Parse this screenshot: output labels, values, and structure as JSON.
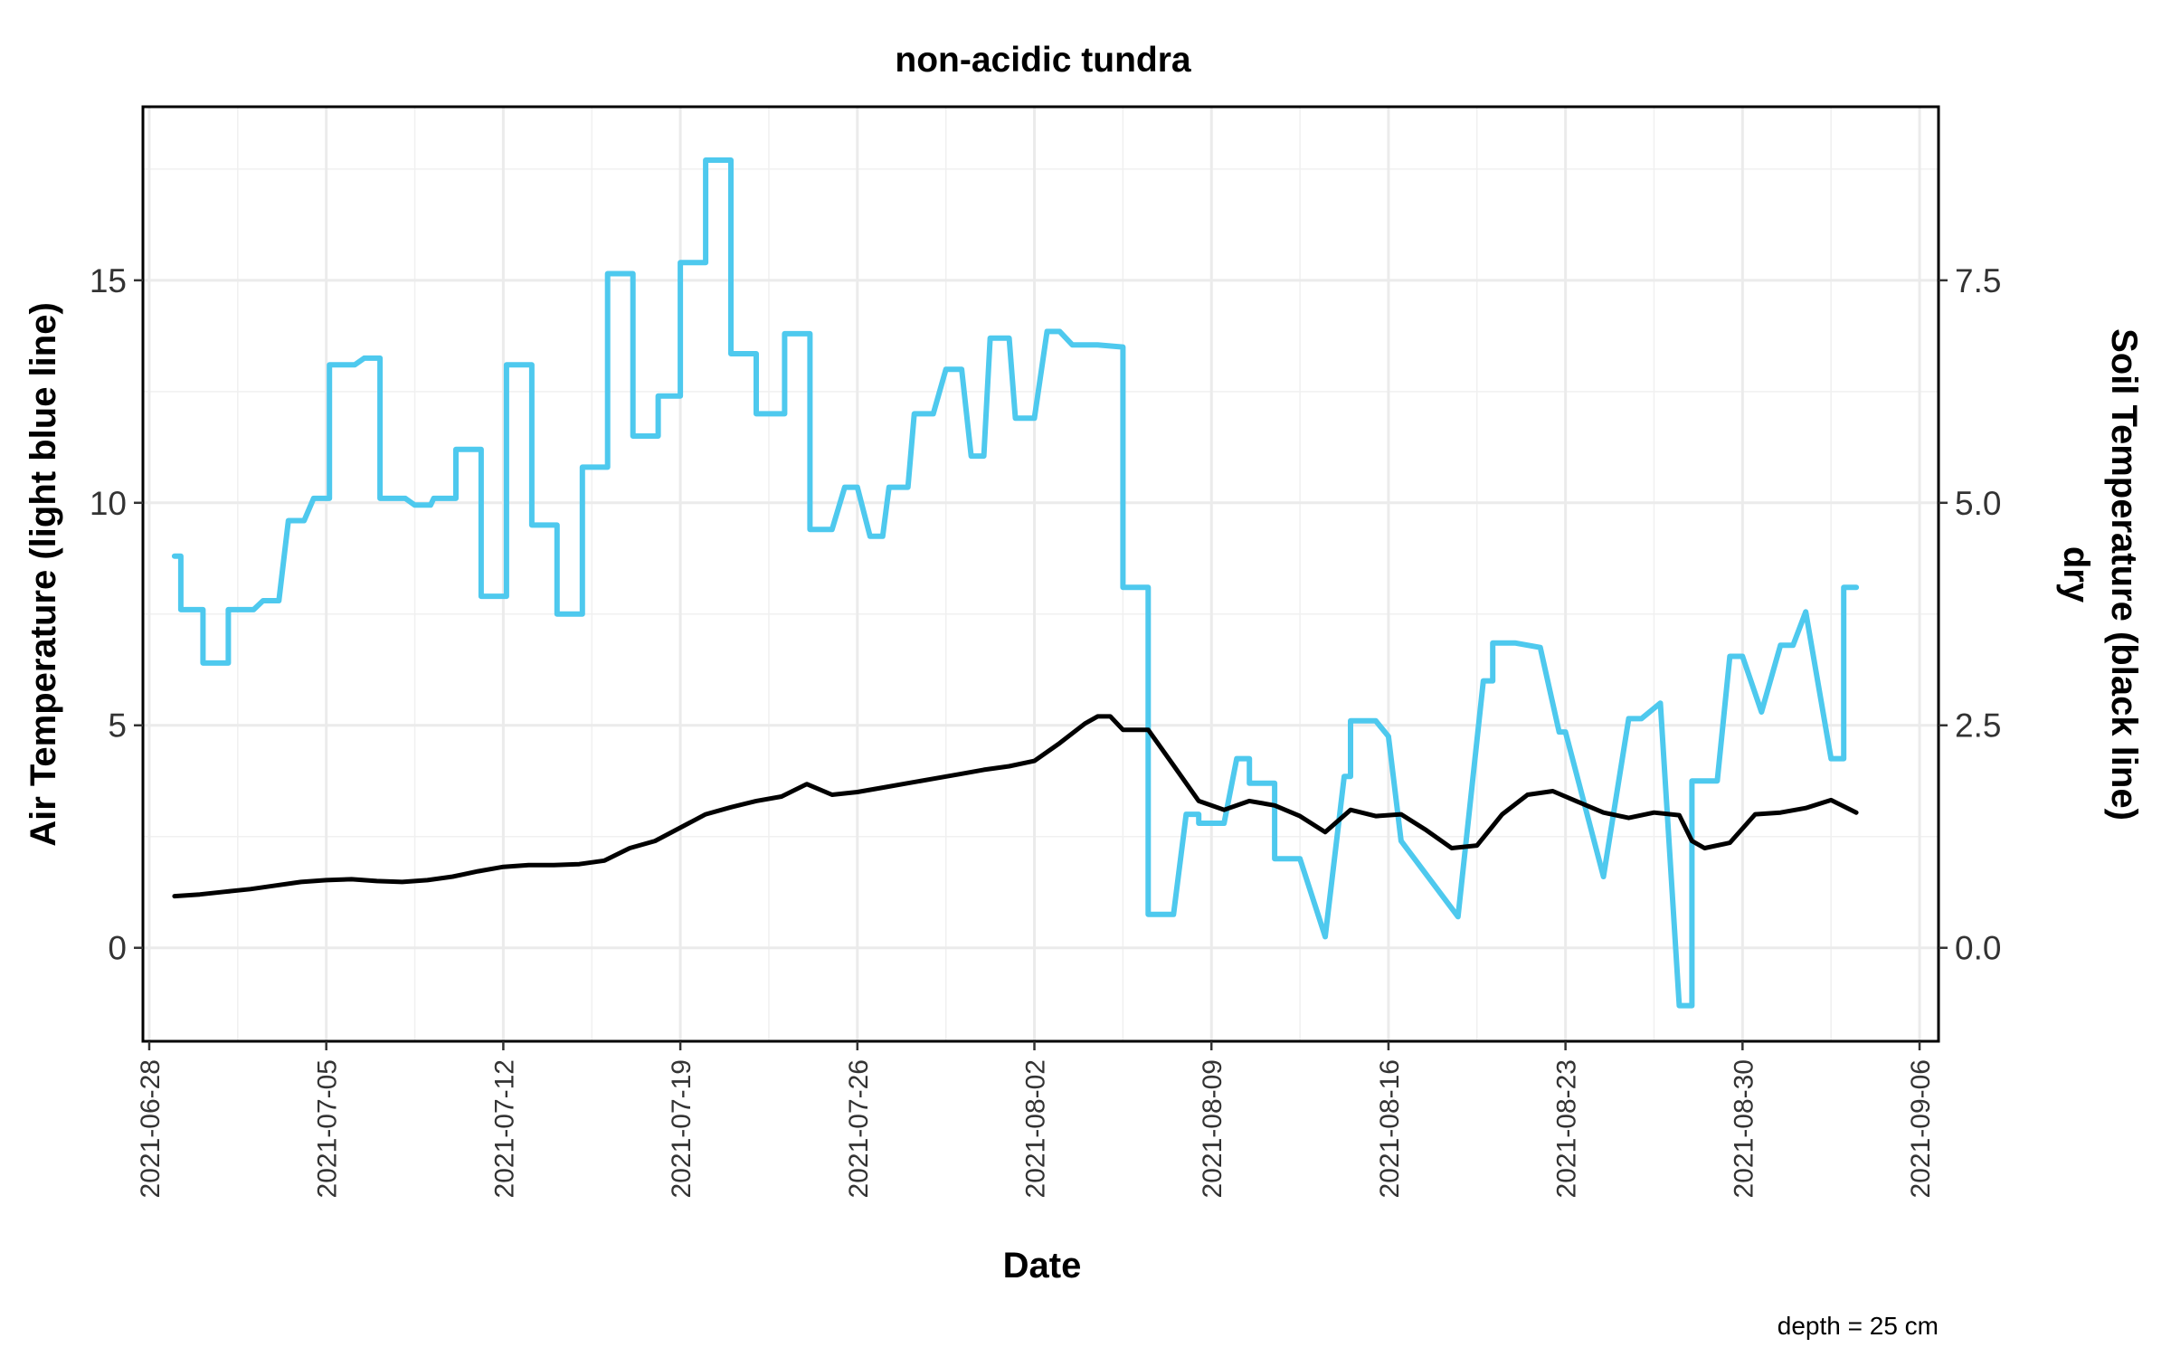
{
  "chart_data": {
    "type": "line",
    "title": "non-acidic tundra",
    "xlabel": "Date",
    "ylabel_left": "Air Temperature (light blue line)",
    "ylabel_right_line1": "Soil Temperature (black line)",
    "ylabel_right_line2": "dry",
    "caption": "depth = 25 cm",
    "x_ticks": [
      "2021-06-28",
      "2021-07-05",
      "2021-07-12",
      "2021-07-19",
      "2021-07-26",
      "2021-08-02",
      "2021-08-09",
      "2021-08-16",
      "2021-08-23",
      "2021-08-30",
      "2021-09-06"
    ],
    "y_left_ticks": [
      "0",
      "5",
      "10",
      "15"
    ],
    "y_right_ticks": [
      "0.0",
      "2.5",
      "5.0",
      "7.5"
    ],
    "xlim": [
      "2021-06-27T18:00",
      "2021-09-06T18:00"
    ],
    "ylim_left": [
      -2.1,
      18.9
    ],
    "ylim_right": [
      -1.05,
      9.45
    ],
    "grid": true,
    "colors": {
      "air": "#4ec9ee",
      "soil": "#000000"
    },
    "series": [
      {
        "key": "air",
        "axis": "left",
        "points": [
          [
            "2021-06-29T00:00",
            8.8
          ],
          [
            "2021-06-29T06:00",
            8.8
          ],
          [
            "2021-06-29T06:00",
            7.6
          ],
          [
            "2021-06-30T03:00",
            7.6
          ],
          [
            "2021-06-30T03:00",
            6.4
          ],
          [
            "2021-07-01T03:00",
            6.4
          ],
          [
            "2021-07-01T03:00",
            7.6
          ],
          [
            "2021-07-02T03:00",
            7.6
          ],
          [
            "2021-07-02T12:00",
            7.8
          ],
          [
            "2021-07-03T03:00",
            7.8
          ],
          [
            "2021-07-03T12:00",
            9.6
          ],
          [
            "2021-07-04T03:00",
            9.6
          ],
          [
            "2021-07-04T12:00",
            10.1
          ],
          [
            "2021-07-05T03:00",
            10.1
          ],
          [
            "2021-07-05T03:00",
            13.1
          ],
          [
            "2021-07-06T03:00",
            13.1
          ],
          [
            "2021-07-06T12:00",
            13.25
          ],
          [
            "2021-07-07T03:00",
            13.25
          ],
          [
            "2021-07-07T03:00",
            10.1
          ],
          [
            "2021-07-08T03:00",
            10.1
          ],
          [
            "2021-07-08T12:00",
            9.95
          ],
          [
            "2021-07-09T03:00",
            9.95
          ],
          [
            "2021-07-09T06:00",
            10.1
          ],
          [
            "2021-07-10T03:00",
            10.1
          ],
          [
            "2021-07-10T03:00",
            11.2
          ],
          [
            "2021-07-11T03:00",
            11.2
          ],
          [
            "2021-07-11T03:00",
            7.9
          ],
          [
            "2021-07-12T03:00",
            7.9
          ],
          [
            "2021-07-12T03:00",
            13.1
          ],
          [
            "2021-07-13T03:00",
            13.1
          ],
          [
            "2021-07-13T03:00",
            9.5
          ],
          [
            "2021-07-14T03:00",
            9.5
          ],
          [
            "2021-07-14T03:00",
            7.5
          ],
          [
            "2021-07-15T03:00",
            7.5
          ],
          [
            "2021-07-15T03:00",
            10.8
          ],
          [
            "2021-07-16T03:00",
            10.8
          ],
          [
            "2021-07-16T03:00",
            15.15
          ],
          [
            "2021-07-17T03:00",
            15.15
          ],
          [
            "2021-07-17T03:00",
            11.5
          ],
          [
            "2021-07-18T03:00",
            11.5
          ],
          [
            "2021-07-18T03:00",
            12.4
          ],
          [
            "2021-07-19T00:00",
            12.4
          ],
          [
            "2021-07-19T00:00",
            15.4
          ],
          [
            "2021-07-20T00:00",
            15.4
          ],
          [
            "2021-07-20T00:00",
            17.7
          ],
          [
            "2021-07-21T00:00",
            17.7
          ],
          [
            "2021-07-21T00:00",
            13.35
          ],
          [
            "2021-07-22T00:00",
            13.35
          ],
          [
            "2021-07-22T00:00",
            12.0
          ],
          [
            "2021-07-23T03:00",
            12.0
          ],
          [
            "2021-07-23T03:00",
            13.8
          ],
          [
            "2021-07-24T03:00",
            13.8
          ],
          [
            "2021-07-24T03:00",
            9.4
          ],
          [
            "2021-07-25T00:00",
            9.4
          ],
          [
            "2021-07-25T12:00",
            10.35
          ],
          [
            "2021-07-26T00:00",
            10.35
          ],
          [
            "2021-07-26T12:00",
            9.25
          ],
          [
            "2021-07-27T00:00",
            9.25
          ],
          [
            "2021-07-27T06:00",
            10.35
          ],
          [
            "2021-07-28T00:00",
            10.35
          ],
          [
            "2021-07-28T06:00",
            12.0
          ],
          [
            "2021-07-29T00:00",
            12.0
          ],
          [
            "2021-07-29T12:00",
            13.0
          ],
          [
            "2021-07-30T03:00",
            13.0
          ],
          [
            "2021-07-30T12:00",
            11.05
          ],
          [
            "2021-07-31T00:00",
            11.05
          ],
          [
            "2021-07-31T06:00",
            13.7
          ],
          [
            "2021-08-01T00:00",
            13.7
          ],
          [
            "2021-08-01T06:00",
            11.9
          ],
          [
            "2021-08-02T00:00",
            11.9
          ],
          [
            "2021-08-02T12:00",
            13.85
          ],
          [
            "2021-08-03T00:00",
            13.85
          ],
          [
            "2021-08-03T12:00",
            13.55
          ],
          [
            "2021-08-04T12:00",
            13.55
          ],
          [
            "2021-08-05T12:00",
            13.5
          ],
          [
            "2021-08-05T12:00",
            8.1
          ],
          [
            "2021-08-06T12:00",
            8.1
          ],
          [
            "2021-08-06T12:00",
            0.75
          ],
          [
            "2021-08-07T12:00",
            0.75
          ],
          [
            "2021-08-08T00:00",
            3.0
          ],
          [
            "2021-08-08T12:00",
            3.0
          ],
          [
            "2021-08-08T12:00",
            2.8
          ],
          [
            "2021-08-09T12:00",
            2.8
          ],
          [
            "2021-08-10T00:00",
            4.25
          ],
          [
            "2021-08-10T12:00",
            4.25
          ],
          [
            "2021-08-10T12:00",
            3.7
          ],
          [
            "2021-08-11T12:00",
            3.7
          ],
          [
            "2021-08-11T12:00",
            2.0
          ],
          [
            "2021-08-12T12:00",
            2.0
          ],
          [
            "2021-08-13T12:00",
            0.25
          ],
          [
            "2021-08-14T06:00",
            3.85
          ],
          [
            "2021-08-14T12:00",
            3.85
          ],
          [
            "2021-08-14T12:00",
            5.1
          ],
          [
            "2021-08-15T12:00",
            5.1
          ],
          [
            "2021-08-16T00:00",
            4.75
          ],
          [
            "2021-08-16T12:00",
            2.4
          ],
          [
            "2021-08-18T18:00",
            0.7
          ],
          [
            "2021-08-19T18:00",
            6.0
          ],
          [
            "2021-08-20T03:00",
            6.0
          ],
          [
            "2021-08-20T03:00",
            6.85
          ],
          [
            "2021-08-21T00:00",
            6.85
          ],
          [
            "2021-08-22T00:00",
            6.75
          ],
          [
            "2021-08-22T18:00",
            4.85
          ],
          [
            "2021-08-23T00:00",
            4.85
          ],
          [
            "2021-08-24T12:00",
            1.6
          ],
          [
            "2021-08-25T12:00",
            5.15
          ],
          [
            "2021-08-26T00:00",
            5.15
          ],
          [
            "2021-08-26T18:00",
            5.5
          ],
          [
            "2021-08-27T12:00",
            -1.3
          ],
          [
            "2021-08-28T00:00",
            -1.3
          ],
          [
            "2021-08-28T00:00",
            3.75
          ],
          [
            "2021-08-29T00:00",
            3.75
          ],
          [
            "2021-08-29T12:00",
            6.55
          ],
          [
            "2021-08-30T00:00",
            6.55
          ],
          [
            "2021-08-30T18:00",
            5.3
          ],
          [
            "2021-08-31T12:00",
            6.8
          ],
          [
            "2021-09-01T00:00",
            6.8
          ],
          [
            "2021-09-01T12:00",
            7.55
          ],
          [
            "2021-09-02T12:00",
            4.25
          ],
          [
            "2021-09-03T00:00",
            4.25
          ],
          [
            "2021-09-03T00:00",
            8.1
          ],
          [
            "2021-09-03T12:00",
            8.1
          ]
        ]
      },
      {
        "key": "soil",
        "axis": "right",
        "points": [
          [
            "2021-06-29T00:00",
            0.58
          ],
          [
            "2021-06-30T00:00",
            0.6
          ],
          [
            "2021-07-01T00:00",
            0.63
          ],
          [
            "2021-07-02T00:00",
            0.66
          ],
          [
            "2021-07-03T00:00",
            0.7
          ],
          [
            "2021-07-04T00:00",
            0.74
          ],
          [
            "2021-07-05T00:00",
            0.76
          ],
          [
            "2021-07-06T00:00",
            0.77
          ],
          [
            "2021-07-07T00:00",
            0.75
          ],
          [
            "2021-07-08T00:00",
            0.74
          ],
          [
            "2021-07-09T00:00",
            0.76
          ],
          [
            "2021-07-10T00:00",
            0.8
          ],
          [
            "2021-07-11T00:00",
            0.86
          ],
          [
            "2021-07-12T00:00",
            0.91
          ],
          [
            "2021-07-13T00:00",
            0.93
          ],
          [
            "2021-07-14T00:00",
            0.93
          ],
          [
            "2021-07-15T00:00",
            0.94
          ],
          [
            "2021-07-16T00:00",
            0.98
          ],
          [
            "2021-07-17T00:00",
            1.12
          ],
          [
            "2021-07-18T00:00",
            1.2
          ],
          [
            "2021-07-19T00:00",
            1.35
          ],
          [
            "2021-07-20T00:00",
            1.5
          ],
          [
            "2021-07-21T00:00",
            1.58
          ],
          [
            "2021-07-22T00:00",
            1.65
          ],
          [
            "2021-07-23T00:00",
            1.7
          ],
          [
            "2021-07-24T00:00",
            1.84
          ],
          [
            "2021-07-25T00:00",
            1.72
          ],
          [
            "2021-07-26T00:00",
            1.75
          ],
          [
            "2021-07-27T00:00",
            1.8
          ],
          [
            "2021-07-28T00:00",
            1.85
          ],
          [
            "2021-07-29T00:00",
            1.9
          ],
          [
            "2021-07-30T00:00",
            1.95
          ],
          [
            "2021-07-31T00:00",
            2.0
          ],
          [
            "2021-08-01T00:00",
            2.04
          ],
          [
            "2021-08-02T00:00",
            2.1
          ],
          [
            "2021-08-03T00:00",
            2.3
          ],
          [
            "2021-08-04T00:00",
            2.52
          ],
          [
            "2021-08-04T12:00",
            2.6
          ],
          [
            "2021-08-05T00:00",
            2.6
          ],
          [
            "2021-08-05T12:00",
            2.45
          ],
          [
            "2021-08-06T12:00",
            2.45
          ],
          [
            "2021-08-07T12:00",
            2.05
          ],
          [
            "2021-08-08T12:00",
            1.65
          ],
          [
            "2021-08-09T12:00",
            1.55
          ],
          [
            "2021-08-10T12:00",
            1.65
          ],
          [
            "2021-08-11T12:00",
            1.6
          ],
          [
            "2021-08-12T12:00",
            1.48
          ],
          [
            "2021-08-13T12:00",
            1.3
          ],
          [
            "2021-08-14T12:00",
            1.55
          ],
          [
            "2021-08-15T12:00",
            1.48
          ],
          [
            "2021-08-16T12:00",
            1.5
          ],
          [
            "2021-08-17T12:00",
            1.32
          ],
          [
            "2021-08-18T12:00",
            1.12
          ],
          [
            "2021-08-19T12:00",
            1.15
          ],
          [
            "2021-08-20T12:00",
            1.5
          ],
          [
            "2021-08-21T12:00",
            1.72
          ],
          [
            "2021-08-22T12:00",
            1.76
          ],
          [
            "2021-08-23T12:00",
            1.64
          ],
          [
            "2021-08-24T12:00",
            1.52
          ],
          [
            "2021-08-25T12:00",
            1.46
          ],
          [
            "2021-08-26T12:00",
            1.52
          ],
          [
            "2021-08-27T12:00",
            1.49
          ],
          [
            "2021-08-28T00:00",
            1.2
          ],
          [
            "2021-08-28T12:00",
            1.12
          ],
          [
            "2021-08-29T12:00",
            1.18
          ],
          [
            "2021-08-30T12:00",
            1.5
          ],
          [
            "2021-08-31T12:00",
            1.52
          ],
          [
            "2021-09-01T12:00",
            1.57
          ],
          [
            "2021-09-02T12:00",
            1.66
          ],
          [
            "2021-09-03T12:00",
            1.52
          ]
        ]
      }
    ]
  }
}
